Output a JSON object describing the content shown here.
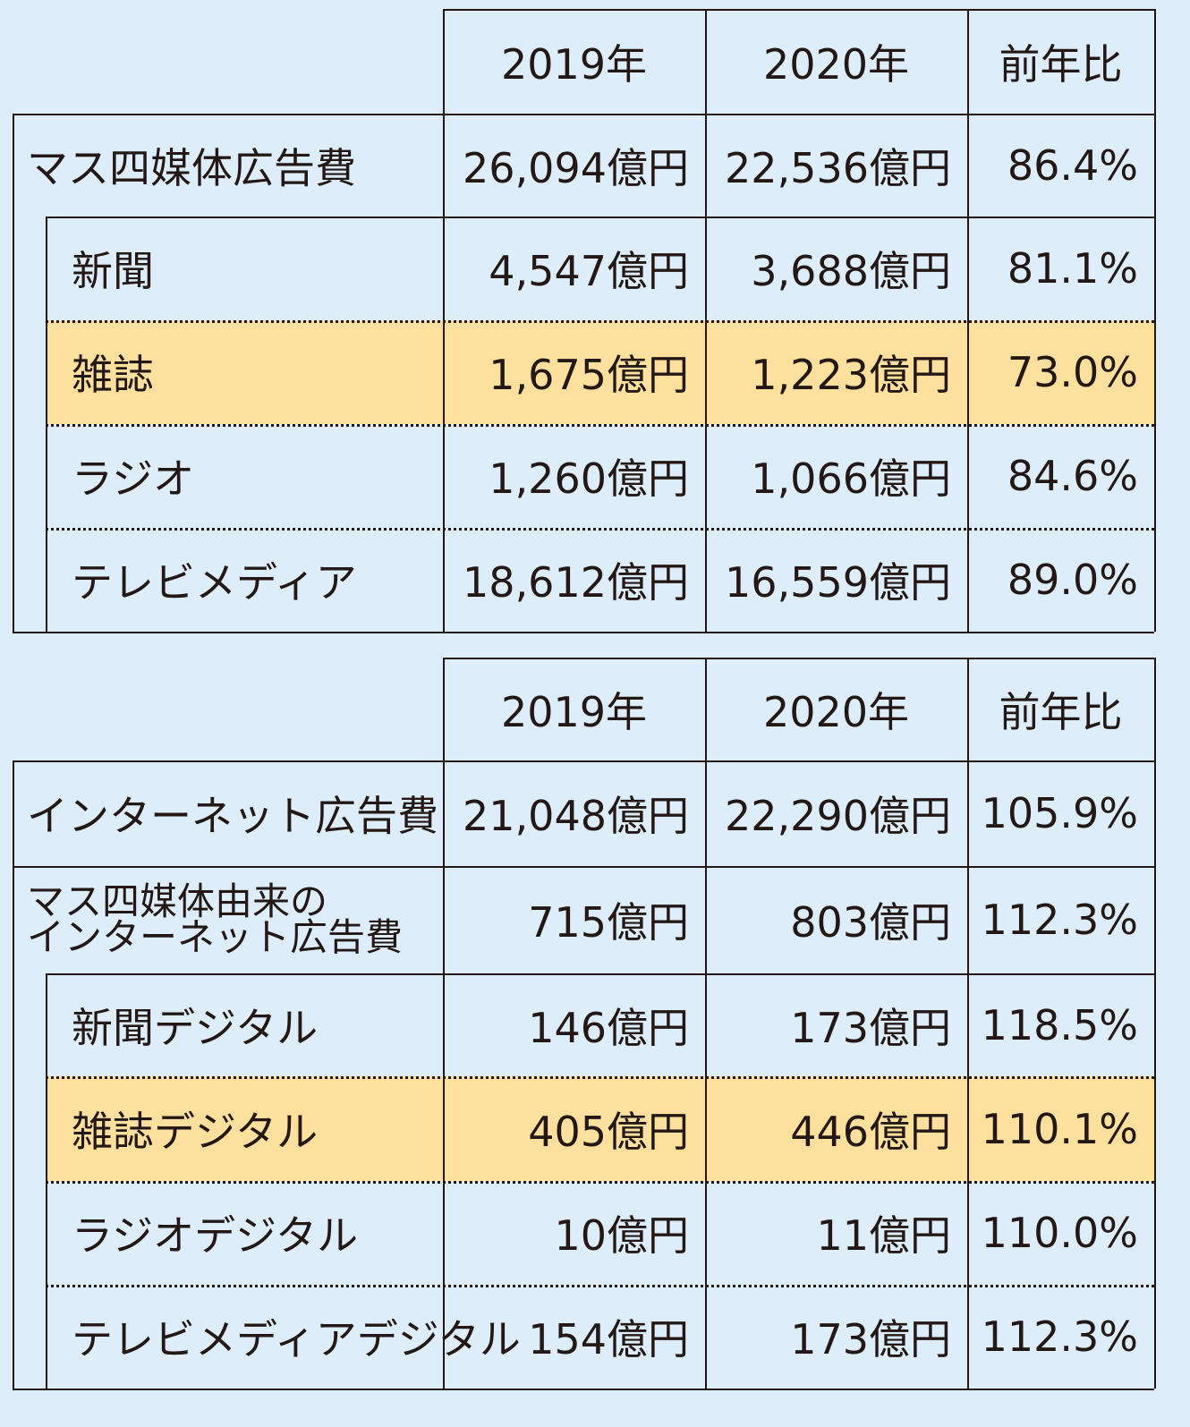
{
  "chart_data": [
    {
      "type": "table",
      "columns": [
        "2019年",
        "2020年",
        "前年比"
      ],
      "rows": [
        {
          "label": "マス四媒体広告費",
          "values": [
            "26,094億円",
            "22,536億円",
            "86.4%"
          ],
          "level": 0
        },
        {
          "label": "新聞",
          "values": [
            "4,547億円",
            "3,688億円",
            "81.1%"
          ],
          "level": 1
        },
        {
          "label": "雑誌",
          "values": [
            "1,675億円",
            "1,223億円",
            "73.0%"
          ],
          "level": 1,
          "highlight": true
        },
        {
          "label": "ラジオ",
          "values": [
            "1,260億円",
            "1,066億円",
            "84.6%"
          ],
          "level": 1
        },
        {
          "label": "テレビメディア",
          "values": [
            "18,612億円",
            "16,559億円",
            "89.0%"
          ],
          "level": 1
        }
      ]
    },
    {
      "type": "table",
      "columns": [
        "2019年",
        "2020年",
        "前年比"
      ],
      "rows": [
        {
          "label": "インターネット広告費",
          "values": [
            "21,048億円",
            "22,290億円",
            "105.9%"
          ],
          "level": 0
        },
        {
          "label": "マス四媒体由来の\nインターネット広告費",
          "values": [
            "715億円",
            "803億円",
            "112.3%"
          ],
          "level": 0
        },
        {
          "label": "新聞デジタル",
          "values": [
            "146億円",
            "173億円",
            "118.5%"
          ],
          "level": 1
        },
        {
          "label": "雑誌デジタル",
          "values": [
            "405億円",
            "446億円",
            "110.1%"
          ],
          "level": 1,
          "highlight": true
        },
        {
          "label": "ラジオデジタル",
          "values": [
            "10億円",
            "11億円",
            "110.0%"
          ],
          "level": 1
        },
        {
          "label": "テレビメディアデジタル",
          "values": [
            "154億円",
            "173億円",
            "112.3%"
          ],
          "level": 1
        }
      ]
    }
  ],
  "colors": {
    "background": "#ddeefa",
    "highlight": "#fddf9e",
    "line": "#231815"
  }
}
